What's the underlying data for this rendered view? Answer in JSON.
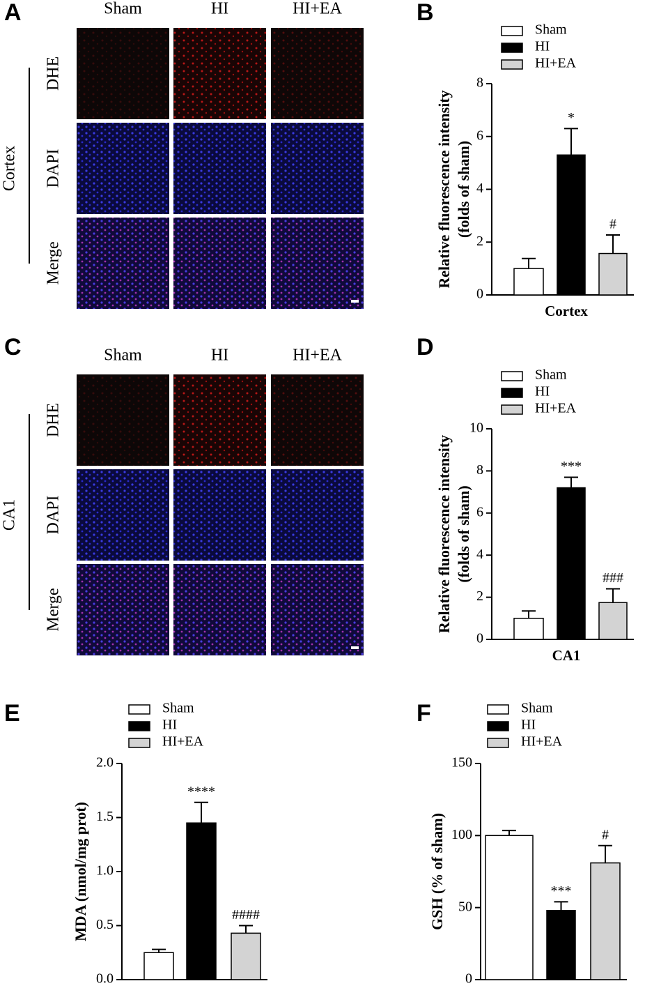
{
  "panel_labels": [
    "A",
    "B",
    "C",
    "D",
    "E",
    "F"
  ],
  "image_panels": [
    {
      "region": "Cortex",
      "columns": [
        "Sham",
        "HI",
        "HI+EA"
      ],
      "rows": [
        "DHE",
        "DAPI",
        "Merge"
      ]
    },
    {
      "region": "CA1",
      "columns": [
        "Sham",
        "HI",
        "HI+EA"
      ],
      "rows": [
        "DHE",
        "DAPI",
        "Merge"
      ]
    }
  ],
  "chart_data": [
    {
      "type": "bar",
      "ylabel": [
        "Relative fluorescence intensity",
        "(folds of sham)"
      ],
      "xlabel": "Cortex",
      "ylim": [
        0,
        8
      ],
      "yticks": [
        0,
        2,
        4,
        6,
        8
      ],
      "series": [
        {
          "name": "Sham",
          "color": "#ffffff",
          "values": [
            1.0
          ],
          "errors": [
            0.38
          ]
        },
        {
          "name": "HI",
          "color": "#000000",
          "values": [
            5.3
          ],
          "errors": [
            1.0
          ],
          "annotations": [
            "*"
          ]
        },
        {
          "name": "HI+EA",
          "color": "#d3d3d3",
          "values": [
            1.57
          ],
          "errors": [
            0.7
          ],
          "annotations": [
            "#"
          ]
        }
      ]
    },
    {
      "type": "bar",
      "ylabel": [
        "Relative fluorescence intensity",
        "(folds of sham)"
      ],
      "xlabel": "CA1",
      "ylim": [
        0,
        10
      ],
      "yticks": [
        0,
        2,
        4,
        6,
        8,
        10
      ],
      "series": [
        {
          "name": "Sham",
          "color": "#ffffff",
          "values": [
            1.0
          ],
          "errors": [
            0.35
          ]
        },
        {
          "name": "HI",
          "color": "#000000",
          "values": [
            7.2
          ],
          "errors": [
            0.5
          ],
          "annotations": [
            "***"
          ]
        },
        {
          "name": "HI+EA",
          "color": "#d3d3d3",
          "values": [
            1.75
          ],
          "errors": [
            0.65
          ],
          "annotations": [
            "###"
          ]
        }
      ]
    },
    {
      "type": "bar",
      "ylabel": [
        "MDA (nmol/mg prot)"
      ],
      "ylim": [
        0,
        2
      ],
      "yticks": [
        {
          "value": 0,
          "label": "0.0"
        },
        0.5,
        {
          "value": 1,
          "label": "1.0"
        },
        1.5,
        {
          "value": 2,
          "label": "2.0"
        }
      ],
      "series": [
        {
          "name": "Sham",
          "color": "#ffffff",
          "values": [
            0.25
          ],
          "errors": [
            0.03
          ]
        },
        {
          "name": "HI",
          "color": "#000000",
          "values": [
            1.45
          ],
          "errors": [
            0.19
          ],
          "annotations": [
            "****"
          ]
        },
        {
          "name": "HI+EA",
          "color": "#d3d3d3",
          "values": [
            0.43
          ],
          "errors": [
            0.07
          ],
          "annotations": [
            "####"
          ]
        }
      ]
    },
    {
      "type": "bar",
      "ylabel": [
        "GSH (% of sham)"
      ],
      "ylim": [
        0,
        150
      ],
      "yticks": [
        0,
        50,
        100,
        150
      ],
      "series": [
        {
          "name": "Sham",
          "color": "#ffffff",
          "values": [
            100
          ],
          "errors": [
            3.5
          ]
        },
        {
          "name": "HI",
          "color": "#000000",
          "values": [
            48
          ],
          "errors": [
            6
          ],
          "annotations": [
            "***"
          ]
        },
        {
          "name": "HI+EA",
          "color": "#d3d3d3",
          "values": [
            81
          ],
          "errors": [
            12
          ],
          "annotations": [
            "#"
          ]
        }
      ]
    }
  ]
}
